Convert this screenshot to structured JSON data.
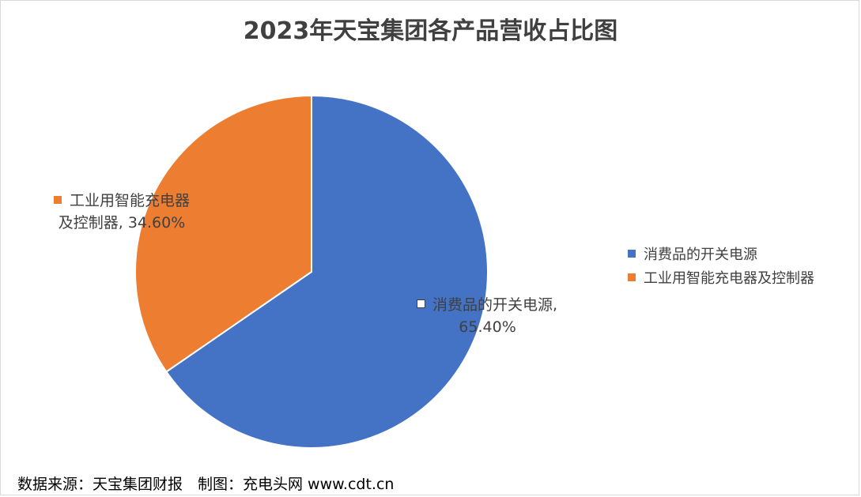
{
  "chart_data": {
    "type": "pie",
    "title": "2023年天宝集团各产品营收占比图",
    "slices": [
      {
        "name": "消费品的开关电源",
        "value": 65.4,
        "label": "65.40%",
        "color": "#4472c4"
      },
      {
        "name": "工业用智能充电器及控制器",
        "value": 34.6,
        "label": "34.60%",
        "color": "#ed7d31"
      }
    ],
    "data_labels": {
      "orange_line1": "工业用智能充电器",
      "orange_line2": "及控制器, 34.60%",
      "blue_line1": "消费品的开关电源,",
      "blue_line2": "65.40%"
    },
    "legend": {
      "placement": "right",
      "items": [
        {
          "label": "消费品的开关电源",
          "color": "#4472c4"
        },
        {
          "label": "工业用智能充电器及控制器",
          "color": "#ed7d31"
        }
      ]
    }
  },
  "footer": {
    "source": "数据来源：天宝集团财报　制图：充电头网 www.cdt.cn"
  }
}
